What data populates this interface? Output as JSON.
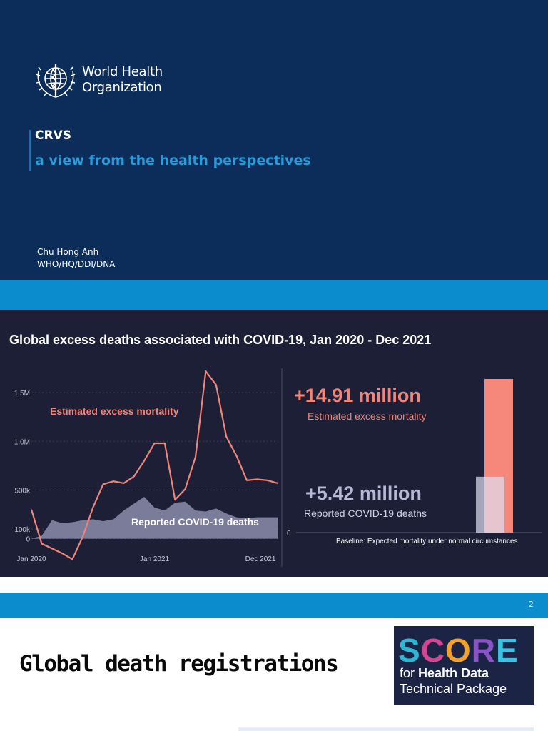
{
  "slide1": {
    "logo_line1": "World Health",
    "logo_line2": "Organization",
    "title": "CRVS",
    "subtitle": "a view from the health perspectives",
    "author_name": "Chu Hong Anh",
    "author_dept": "WHO/HQ/DDI/DNA"
  },
  "slide2": {
    "page_number": "2",
    "chart_data": {
      "type": "line",
      "title": "Global excess deaths associated with COVID-19, Jan 2020 - Dec 2021",
      "x_ticks": [
        "Jan 2020",
        "Jan 2021",
        "Dec 2021"
      ],
      "y_ticks": [
        "1.5M",
        "1.0M",
        "500k",
        "100k",
        "0"
      ],
      "ylim": [
        -230000,
        1750000
      ],
      "series": [
        {
          "name": "Estimated excess mortality",
          "color": "#f0857a",
          "values": [
            300000,
            -50000,
            -100000,
            -150000,
            -210000,
            20000,
            320000,
            560000,
            590000,
            570000,
            640000,
            800000,
            980000,
            980000,
            400000,
            510000,
            840000,
            1720000,
            1580000,
            1050000,
            850000,
            600000,
            610000,
            600000,
            570000
          ]
        },
        {
          "name": "Reported COVID-19 deaths",
          "color": "#8c8cab",
          "values": [
            0,
            30000,
            190000,
            160000,
            170000,
            190000,
            200000,
            180000,
            200000,
            290000,
            360000,
            430000,
            320000,
            290000,
            370000,
            380000,
            290000,
            280000,
            310000,
            260000,
            220000,
            210000,
            220000,
            220000,
            220000
          ]
        }
      ],
      "summary_bar": {
        "ylim_label": "0",
        "excess_label": "+14.91 million",
        "excess_caption": "Estimated excess mortality",
        "excess_value": 14.91,
        "reported_label": "+5.42 million",
        "reported_caption": "Reported COVID-19 deaths",
        "reported_value": 5.42,
        "baseline_caption": "Baseline: Expected mortality under normal circumstances"
      }
    }
  },
  "slide3": {
    "title": "Global death registrations",
    "score_letters": [
      {
        "char": "S",
        "color": "#2eb6d4"
      },
      {
        "char": "C",
        "color": "#d54594"
      },
      {
        "char": "O",
        "color": "#f2a12e"
      },
      {
        "char": "R",
        "color": "#8a53c6"
      },
      {
        "char": "E",
        "color": "#39c2e1"
      }
    ],
    "score_for": "for",
    "score_bold": "Health Data",
    "score_line2": "Technical Package"
  }
}
